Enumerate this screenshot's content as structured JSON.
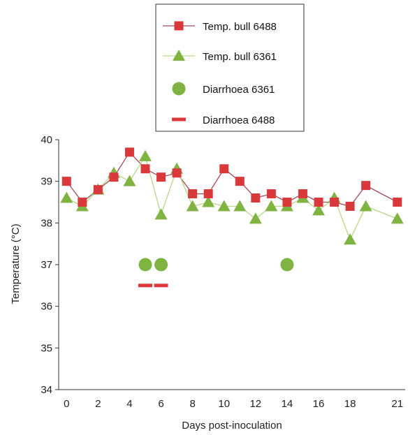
{
  "chart_data": {
    "type": "line",
    "xlabel": "Days post-inoculation",
    "ylabel": "Temperature (°C)",
    "xlim": [
      -0.5,
      21.5
    ],
    "ylim": [
      34,
      40
    ],
    "xticks": [
      0,
      2,
      4,
      6,
      8,
      10,
      12,
      14,
      16,
      18,
      21
    ],
    "yticks": [
      34,
      35,
      36,
      37,
      38,
      39,
      40
    ],
    "grid": false,
    "legend_position": "top-center",
    "series": [
      {
        "name": "Temp. bull 6488",
        "marker": "square",
        "line": true,
        "color": "#d9393a",
        "line_color": "#a8485a",
        "x": [
          0,
          1,
          2,
          3,
          4,
          5,
          6,
          7,
          8,
          9,
          10,
          11,
          12,
          13,
          14,
          15,
          16,
          17,
          18,
          19,
          21
        ],
        "y": [
          39.0,
          38.5,
          38.8,
          39.1,
          39.7,
          39.3,
          39.1,
          39.2,
          38.7,
          38.7,
          39.3,
          39.0,
          38.6,
          38.7,
          38.5,
          38.7,
          38.5,
          38.5,
          38.4,
          38.9,
          38.5
        ]
      },
      {
        "name": "Temp. bull 6361",
        "marker": "triangle",
        "line": true,
        "color": "#7fb342",
        "line_color": "#b8d68a",
        "x": [
          0,
          1,
          2,
          3,
          4,
          5,
          6,
          7,
          8,
          9,
          10,
          11,
          12,
          13,
          14,
          15,
          16,
          17,
          18,
          19,
          21
        ],
        "y": [
          38.6,
          38.4,
          38.8,
          39.2,
          39.0,
          39.6,
          38.2,
          39.3,
          38.4,
          38.5,
          38.4,
          38.4,
          38.1,
          38.4,
          38.4,
          38.6,
          38.3,
          38.6,
          37.6,
          38.4,
          38.1
        ]
      },
      {
        "name": "Diarrhoea 6361",
        "marker": "circle",
        "line": false,
        "color": "#7fb342",
        "x": [
          5,
          6,
          14
        ],
        "y": [
          37.0,
          37.0,
          37.0
        ]
      },
      {
        "name": "Diarrhoea 6488",
        "marker": "dash",
        "line": false,
        "color": "#d9393a",
        "line_color": "#a8485a",
        "x": [
          5,
          6
        ],
        "y": [
          36.5,
          36.5
        ]
      }
    ]
  }
}
